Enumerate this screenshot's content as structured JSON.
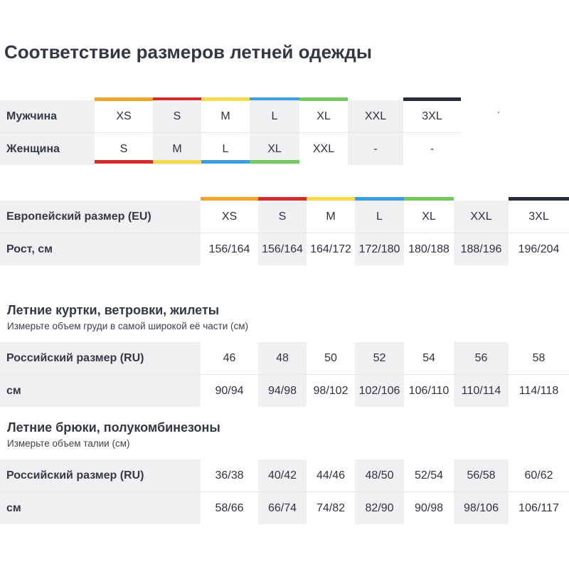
{
  "title": "Соответствие размеров летней одежды",
  "colors": {
    "orange": "#f2a42a",
    "red": "#d42b2b",
    "yellow": "#f7d94a",
    "blue": "#3a9de0",
    "green": "#72c85b",
    "navy": "#262b3d",
    "shade": "#f0f0f2"
  },
  "gender_table": {
    "men_label": "Мужчина",
    "women_label": "Женщина",
    "men": [
      "XS",
      "S",
      "M",
      "L",
      "XL",
      "XXL",
      "3XL"
    ],
    "women": [
      "S",
      "M",
      "L",
      "XL",
      "XXL",
      "-",
      "-"
    ]
  },
  "eu_table": {
    "size_label": "Европейский размер (EU)",
    "height_label": "Рост, см",
    "sizes": [
      "XS",
      "S",
      "M",
      "L",
      "XL",
      "XXL",
      "3XL"
    ],
    "heights": [
      "156/164",
      "156/164",
      "164/172",
      "172/180",
      "180/188",
      "188/196",
      "196/204"
    ]
  },
  "jackets": {
    "heading": "Летние куртки, ветровки, жилеты",
    "subheading": "Измерьте объем груди в самой широкой её части (см)",
    "size_label": "Российский размер (RU)",
    "cm_label": "см",
    "sizes": [
      "46",
      "48",
      "50",
      "52",
      "54",
      "56",
      "58"
    ],
    "cm": [
      "90/94",
      "94/98",
      "98/102",
      "102/106",
      "106/110",
      "110/114",
      "114/118"
    ]
  },
  "pants": {
    "heading": "Летние брюки, полукомбинезоны",
    "subheading": "Измерьте объем талии (см)",
    "size_label": "Российский размер (RU)",
    "cm_label": "см",
    "sizes": [
      "36/38",
      "40/42",
      "44/46",
      "48/50",
      "52/54",
      "56/58",
      "60/62"
    ],
    "cm": [
      "58/66",
      "66/74",
      "74/82",
      "82/90",
      "90/98",
      "98/106",
      "106/117"
    ]
  }
}
